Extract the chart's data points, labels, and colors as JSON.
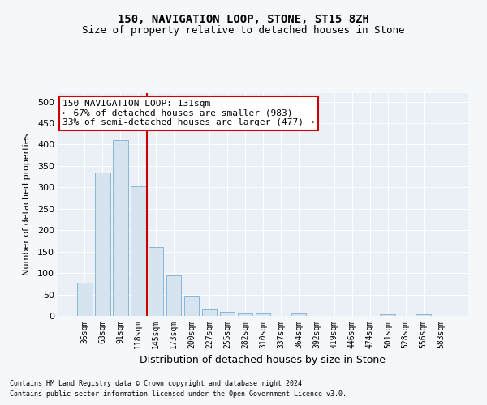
{
  "title1": "150, NAVIGATION LOOP, STONE, ST15 8ZH",
  "title2": "Size of property relative to detached houses in Stone",
  "xlabel": "Distribution of detached houses by size in Stone",
  "ylabel": "Number of detached properties",
  "categories": [
    "36sqm",
    "63sqm",
    "91sqm",
    "118sqm",
    "145sqm",
    "173sqm",
    "200sqm",
    "227sqm",
    "255sqm",
    "282sqm",
    "310sqm",
    "337sqm",
    "364sqm",
    "392sqm",
    "419sqm",
    "446sqm",
    "474sqm",
    "501sqm",
    "528sqm",
    "556sqm",
    "583sqm"
  ],
  "values": [
    78,
    335,
    410,
    302,
    160,
    95,
    45,
    15,
    10,
    5,
    5,
    0,
    5,
    0,
    0,
    0,
    0,
    4,
    0,
    4,
    0
  ],
  "bar_color": "#d6e4f0",
  "bar_edge_color": "#7bafd4",
  "vline_x": 3.5,
  "vline_color": "#cc0000",
  "annotation_text": "150 NAVIGATION LOOP: 131sqm\n← 67% of detached houses are smaller (983)\n33% of semi-detached houses are larger (477) →",
  "annotation_box_color": "white",
  "annotation_box_edge": "#cc0000",
  "ylim": [
    0,
    520
  ],
  "yticks": [
    0,
    50,
    100,
    150,
    200,
    250,
    300,
    350,
    400,
    450,
    500
  ],
  "footer1": "Contains HM Land Registry data © Crown copyright and database right 2024.",
  "footer2": "Contains public sector information licensed under the Open Government Licence v3.0.",
  "bg_color": "#f5f8fb",
  "plot_bg_color": "#eaf0f6",
  "grid_color": "#ffffff",
  "title1_fontsize": 10,
  "title2_fontsize": 9,
  "xlabel_fontsize": 9,
  "ylabel_fontsize": 8,
  "tick_fontsize": 8,
  "xtick_fontsize": 7,
  "footer_fontsize": 6,
  "ann_fontsize": 8
}
